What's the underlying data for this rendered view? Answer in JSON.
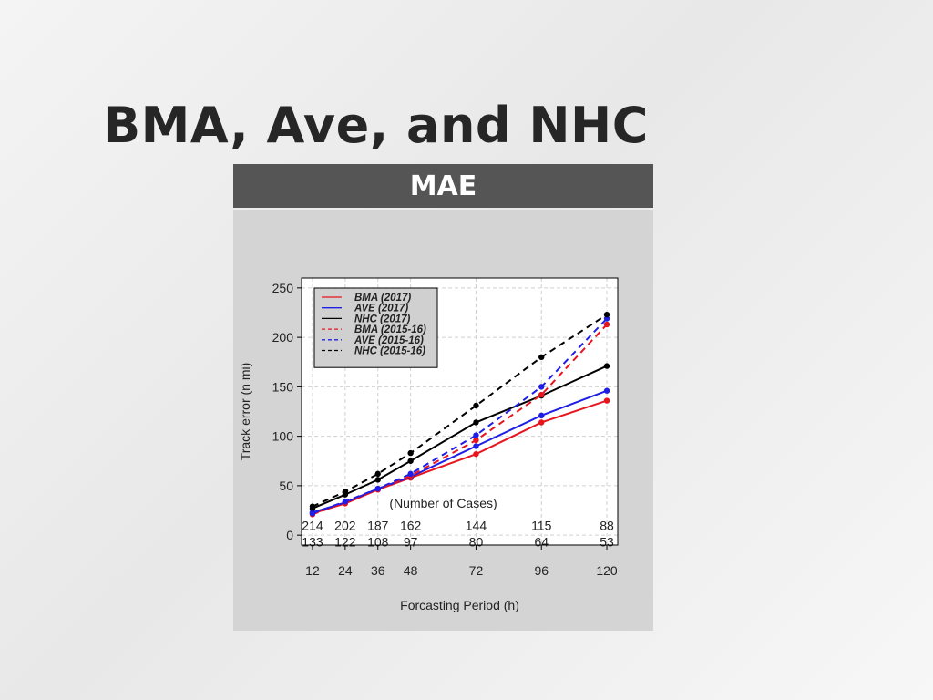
{
  "slide": {
    "title": "BMA, Ave, and NHC",
    "table_header": "MAE"
  },
  "colors": {
    "header_bg": "#555555",
    "panel_bg": "#d4d4d4",
    "red": "#e8141e",
    "blue": "#1e1ee6",
    "black": "#000000"
  },
  "chart_data": {
    "type": "line",
    "xlabel": "Forcasting Period (h)",
    "ylabel": "Track error (n mi)",
    "x": [
      12,
      24,
      36,
      48,
      72,
      96,
      120
    ],
    "xlim": [
      8,
      124
    ],
    "ylim": [
      -10,
      260
    ],
    "yticks": [
      0,
      50,
      100,
      150,
      200,
      250
    ],
    "grid": true,
    "legend_position": "top-left",
    "series": [
      {
        "name": "BMA (2017)",
        "color": "#e8141e",
        "dashed": false,
        "values": [
          22,
          32,
          46,
          58,
          82,
          114,
          136
        ]
      },
      {
        "name": "AVE (2017)",
        "color": "#1e1ee6",
        "dashed": false,
        "values": [
          23,
          33,
          47,
          59,
          90,
          121,
          146
        ]
      },
      {
        "name": "NHC (2017)",
        "color": "#000000",
        "dashed": false,
        "values": [
          27,
          41,
          56,
          75,
          114,
          141,
          171
        ]
      },
      {
        "name": "BMA (2015-16)",
        "color": "#e8141e",
        "dashed": true,
        "values": [
          21,
          33,
          46,
          60,
          96,
          142,
          213
        ]
      },
      {
        "name": "AVE (2015-16)",
        "color": "#1e1ee6",
        "dashed": true,
        "values": [
          22,
          34,
          47,
          62,
          101,
          150,
          219
        ]
      },
      {
        "name": "NHC (2015-16)",
        "color": "#000000",
        "dashed": true,
        "values": [
          29,
          44,
          62,
          83,
          131,
          180,
          223
        ]
      }
    ],
    "annotation": "(Number of Cases)",
    "cases_2017": [
      "214",
      "202",
      "187",
      "162",
      "144",
      "115",
      "88"
    ],
    "cases_2015_16": [
      "133",
      "122",
      "108",
      "97",
      "80",
      "64",
      "53"
    ]
  }
}
